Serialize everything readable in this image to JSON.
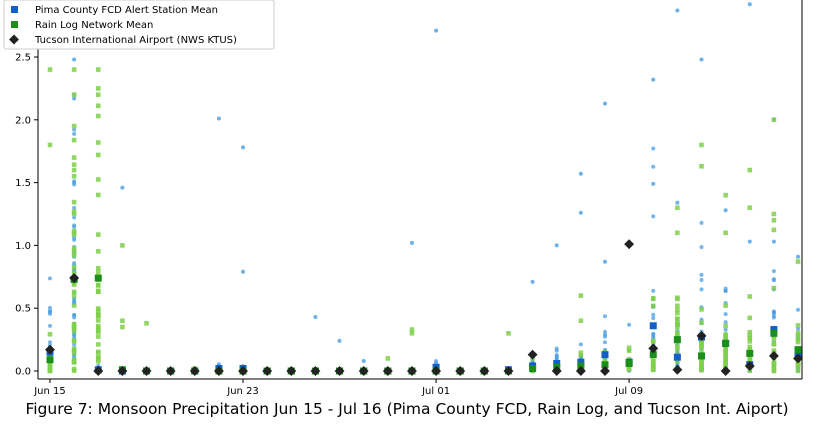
{
  "caption": "Figure 7: Monsoon Precipitation Jun 15 - Jul 16 (Pima County FCD, Rain Log, and Tucson Int. Aiport)",
  "chart_data": {
    "type": "scatter",
    "title": "",
    "xlabel": "",
    "ylabel": "",
    "x_dates": [
      "Jun 15",
      "Jun 16",
      "Jun 17",
      "Jun 18",
      "Jun 19",
      "Jun 20",
      "Jun 21",
      "Jun 22",
      "Jun 23",
      "Jun 24",
      "Jun 25",
      "Jun 26",
      "Jun 27",
      "Jun 28",
      "Jun 29",
      "Jun 30",
      "Jul 01",
      "Jul 02",
      "Jul 03",
      "Jul 04",
      "Jul 05",
      "Jul 06",
      "Jul 07",
      "Jul 08",
      "Jul 09",
      "Jul 10",
      "Jul 11",
      "Jul 12",
      "Jul 13",
      "Jul 14",
      "Jul 15",
      "Jul 16"
    ],
    "x_ticks": [
      "Jun 15",
      "Jun 23",
      "Jul 01",
      "Jul 09"
    ],
    "y_ticks": [
      "0.0",
      "0.5",
      "1.0",
      "1.5",
      "2.0",
      "2.5"
    ],
    "ylim": [
      -0.05,
      2.95
    ],
    "grid": false,
    "legend_position": "top-left",
    "colors": {
      "pima_station": "#4a9ee0",
      "pima_mean": "#1060c8",
      "rainlog_obs": "#7fd04a",
      "rainlog_mean": "#1a8f1a",
      "airport": "#222222"
    },
    "series": [
      {
        "name": "Pima County FCD Alert Station Mean",
        "marker": "square",
        "values": [
          0.15,
          0.73,
          0.01,
          0,
          0,
          0,
          0,
          0.02,
          0.02,
          0,
          0,
          0,
          0,
          0,
          0,
          0,
          0.03,
          0,
          0,
          0.01,
          0.04,
          0.06,
          0.07,
          0.13,
          0.07,
          0.36,
          0.11,
          0.27,
          0.22,
          0.05,
          0.33,
          0.12
        ]
      },
      {
        "name": "Rain Log Network Mean",
        "marker": "square",
        "values": [
          0.09,
          0.73,
          0.74,
          0.01,
          0,
          0,
          0,
          0,
          0,
          0,
          0,
          0,
          0,
          0,
          0,
          0,
          0,
          0,
          0,
          0,
          0.02,
          0.03,
          0.04,
          0.05,
          0.06,
          0.13,
          0.25,
          0.12,
          0.22,
          0.14,
          0.3,
          0.17
        ]
      },
      {
        "name": "Tucson International Airport (NWS KTUS)",
        "marker": "diamond",
        "values": [
          0.17,
          0.74,
          0,
          0,
          0,
          0,
          0,
          0,
          0,
          0,
          0,
          0,
          0,
          0,
          0,
          0,
          0,
          0,
          0,
          0,
          0.13,
          0,
          0,
          0,
          1.01,
          0.18,
          0.01,
          0.28,
          0,
          0.04,
          0.12,
          0.1
        ]
      }
    ],
    "outliers": {
      "pima_station": [
        [
          0,
          0.47
        ],
        [
          1,
          2.48
        ],
        [
          1,
          2.17
        ],
        [
          3,
          1.46
        ],
        [
          7,
          2.01
        ],
        [
          8,
          1.78
        ],
        [
          8,
          0.79
        ],
        [
          11,
          0.43
        ],
        [
          12,
          0.24
        ],
        [
          13,
          0.08
        ],
        [
          15,
          1.02
        ],
        [
          16,
          2.71
        ],
        [
          20,
          0.71
        ],
        [
          21,
          1.0
        ],
        [
          22,
          1.57
        ],
        [
          22,
          1.26
        ],
        [
          23,
          2.13
        ],
        [
          23,
          0.87
        ],
        [
          25,
          2.32
        ],
        [
          25,
          1.49
        ],
        [
          26,
          2.87
        ],
        [
          26,
          1.34
        ],
        [
          27,
          2.48
        ],
        [
          28,
          1.28
        ],
        [
          29,
          2.92
        ],
        [
          29,
          1.03
        ],
        [
          30,
          1.03
        ],
        [
          31,
          0.91
        ]
      ],
      "rainlog_obs": [
        [
          0,
          2.4
        ],
        [
          0,
          1.8
        ],
        [
          1,
          2.4
        ],
        [
          1,
          1.95
        ],
        [
          2,
          2.4
        ],
        [
          2,
          2.25
        ],
        [
          2,
          2.03
        ],
        [
          3,
          1.0
        ],
        [
          3,
          0.4
        ],
        [
          3,
          0.35
        ],
        [
          4,
          0.38
        ],
        [
          14,
          0.1
        ],
        [
          15,
          0.33
        ],
        [
          15,
          0.3
        ],
        [
          19,
          0.3
        ],
        [
          22,
          0.6
        ],
        [
          22,
          0.4
        ],
        [
          26,
          1.3
        ],
        [
          26,
          1.1
        ],
        [
          27,
          1.8
        ],
        [
          27,
          1.63
        ],
        [
          28,
          1.4
        ],
        [
          28,
          1.1
        ],
        [
          29,
          1.6
        ],
        [
          29,
          1.3
        ],
        [
          30,
          2.0
        ],
        [
          30,
          1.25
        ],
        [
          30,
          1.2
        ]
      ]
    }
  }
}
